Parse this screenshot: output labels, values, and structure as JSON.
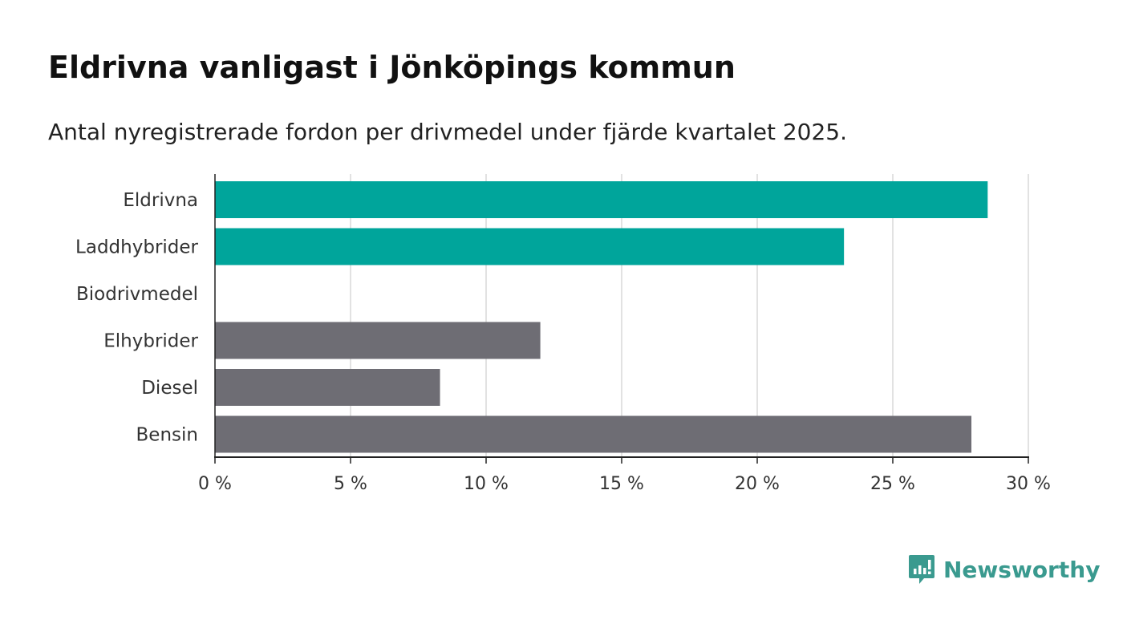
{
  "title": "Eldrivna vanligast i Jönköpings kommun",
  "subtitle": "Antal nyregistrerade fordon per drivmedel under fjärde kvartalet 2025.",
  "brand": {
    "name": "Newsworthy",
    "color": "#3a9a8f",
    "icon": "newsworthy-logo-icon"
  },
  "chart_data": {
    "type": "bar",
    "orientation": "horizontal",
    "categories": [
      "Eldrivna",
      "Laddhybrider",
      "Biodrivmedel",
      "Elhybrider",
      "Diesel",
      "Bensin"
    ],
    "values": [
      28.5,
      23.2,
      0,
      12.0,
      8.3,
      27.9
    ],
    "colors": [
      "#00a59b",
      "#00a59b",
      "#00a59b",
      "#6e6d74",
      "#6e6d74",
      "#6e6d74"
    ],
    "xlim": [
      0,
      30
    ],
    "xticks": [
      0,
      5,
      10,
      15,
      20,
      25,
      30
    ],
    "xtick_labels": [
      "0 %",
      "5 %",
      "10 %",
      "15 %",
      "20 %",
      "25 %",
      "30 %"
    ],
    "xlabel": "",
    "ylabel": "",
    "grid": true,
    "unit": "%"
  }
}
